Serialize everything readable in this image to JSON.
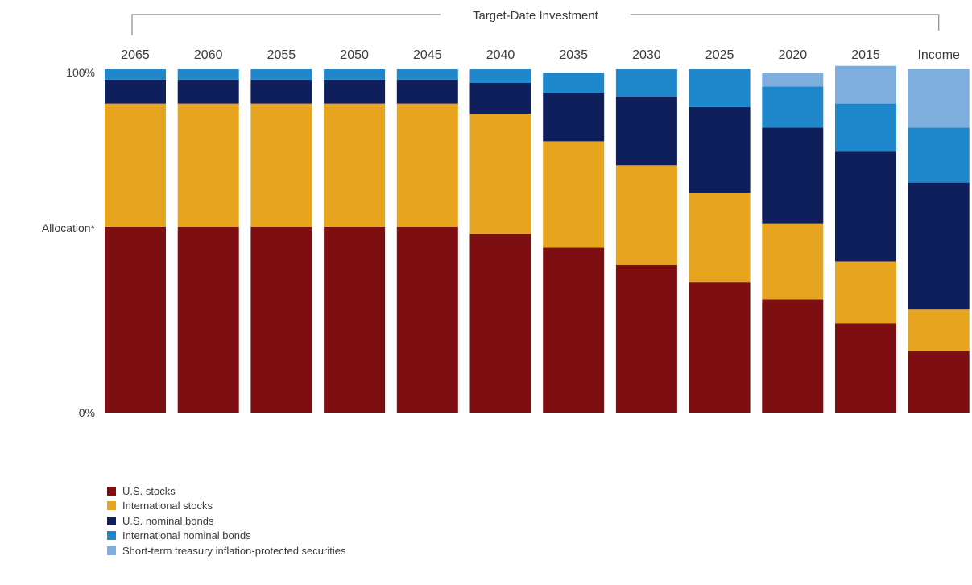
{
  "chart_data": {
    "type": "bar",
    "stacked": true,
    "group_label": "Target-Date Investment",
    "ylabel": "Allocation*",
    "y_ticks": [
      "0%",
      "100%"
    ],
    "ylim": [
      0,
      100
    ],
    "categories": [
      "2065",
      "2060",
      "2055",
      "2050",
      "2045",
      "2040",
      "2035",
      "2030",
      "2025",
      "2020",
      "2015",
      "Income"
    ],
    "series": [
      {
        "name": "U.S. stocks",
        "color": "#7d0f12",
        "values": [
          54,
          54,
          54,
          54,
          54,
          52,
          48,
          43,
          38,
          33,
          26,
          18
        ]
      },
      {
        "name": "International stocks",
        "color": "#e6a41f",
        "values": [
          36,
          36,
          36,
          36,
          36,
          35,
          31,
          29,
          26,
          22,
          18,
          12
        ]
      },
      {
        "name": "U.S. nominal bonds",
        "color": "#0e1f5c",
        "values": [
          7,
          7,
          7,
          7,
          7,
          9,
          14,
          20,
          25,
          28,
          32,
          37
        ]
      },
      {
        "name": "International nominal bonds",
        "color": "#1f87cb",
        "values": [
          3,
          3,
          3,
          3,
          3,
          4,
          6,
          8,
          11,
          12,
          14,
          16
        ]
      },
      {
        "name": "Short-term treasury inflation-protected securities",
        "color": "#7eaedd",
        "values": [
          0,
          0,
          0,
          0,
          0,
          0,
          0,
          0,
          0,
          4,
          11,
          17
        ]
      }
    ],
    "legend_position": "bottom-left"
  }
}
